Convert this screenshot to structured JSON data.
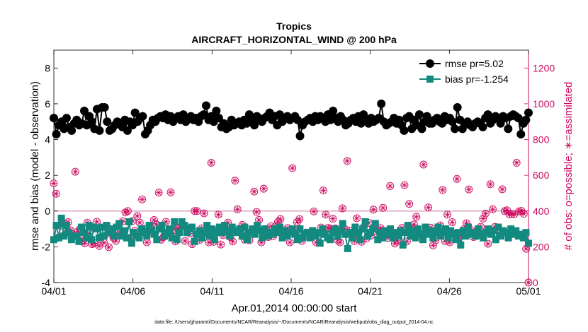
{
  "chart_data": {
    "type": "line",
    "title": "Tropics",
    "subtitle": "AIRCRAFT_HORIZONTAL_WIND @ 200 hPa",
    "xlabel": "Apr.01,2014 00:00:00 start",
    "ylabel": "rmse and bias (model - observation)",
    "y2label": "# of obs: o=possible; ∗=assimilated",
    "footnote": "data file: /Users/gharamti/Documents/NCAR/Reanalysis/~/Documents/NCAR/Reanalysis/webpub/obs_diag_output_2014-04.nc",
    "xlim": [
      0,
      30
    ],
    "ylim": [
      -4,
      9
    ],
    "y2lim": [
      0,
      1300
    ],
    "x_ticks": [
      0,
      5,
      10,
      15,
      20,
      25,
      30
    ],
    "x_tick_labels": [
      "04/01",
      "04/06",
      "04/11",
      "04/16",
      "04/21",
      "04/26",
      "05/01"
    ],
    "y_ticks": [
      -4,
      -2,
      0,
      2,
      4,
      6,
      8
    ],
    "y2_ticks": [
      0,
      200,
      400,
      600,
      800,
      1000,
      1200
    ],
    "zero_line": 0,
    "legend_position": "top-right",
    "colors": {
      "rmse": "#000000",
      "bias": "#138a80",
      "obs": "#cc0a5f",
      "zero": "#d8a0bf"
    },
    "series": [
      {
        "name": "rmse pr=5.02",
        "marker": "circle",
        "values": [
          5.2,
          4.3,
          4.8,
          5.0,
          4.6,
          5.2,
          4.7,
          4.5,
          4.9,
          5.1,
          4.8,
          4.9,
          5.6,
          4.8,
          5.3,
          5.0,
          4.6,
          5.7,
          4.5,
          5.8,
          5.8,
          5.0,
          4.5,
          4.6,
          4.8,
          5.0,
          4.9,
          4.7,
          5.1,
          4.5,
          5.0,
          4.8,
          5.5,
          5.0,
          5.2,
          5.3,
          4.3,
          4.5,
          4.8,
          5.1,
          5.0,
          5.2,
          5.3,
          5.2,
          5.4,
          5.1,
          5.3,
          5.0,
          5.2,
          5.3,
          5.1,
          5.4,
          5.0,
          5.2,
          5.3,
          5.1,
          5.2,
          5.0,
          5.3,
          5.4,
          5.9,
          5.1,
          5.3,
          5.0,
          5.6,
          5.2,
          4.7,
          4.9,
          4.6,
          4.7,
          5.1,
          4.8,
          4.9,
          5.0,
          4.8,
          5.1,
          4.9,
          5.4,
          5.1,
          4.8,
          5.3,
          5.1,
          5.0,
          5.2,
          5.3,
          5.5,
          5.1,
          5.3,
          4.8,
          5.4,
          5.0,
          5.2,
          5.3,
          5.1,
          5.2,
          5.3,
          5.1,
          4.2,
          4.8,
          5.0,
          5.1,
          5.2,
          5.0,
          5.3,
          5.1,
          5.3,
          5.2,
          5.0,
          5.4,
          5.1,
          5.6,
          5.2,
          5.0,
          5.3,
          5.1,
          4.8,
          4.9,
          5.1,
          5.2,
          5.0,
          5.3,
          4.9,
          5.4,
          5.1,
          4.9,
          5.2,
          5.0,
          5.1,
          5.2,
          6.0,
          5.0,
          4.8,
          4.9,
          5.0,
          5.2,
          4.9,
          5.1,
          4.8,
          4.5,
          5.2,
          5.3,
          4.6,
          5.1,
          4.8,
          5.4,
          4.6,
          5.0,
          5.3,
          4.9,
          4.9,
          5.1,
          5.2,
          5.0,
          4.9,
          5.3,
          5.1,
          5.2,
          5.0,
          4.6,
          5.8,
          5.1,
          4.6,
          4.9,
          5.0,
          4.8,
          4.7,
          4.9,
          5.0,
          4.9,
          4.7,
          5.2,
          5.4,
          4.9,
          5.1,
          5.3,
          5.2,
          4.9,
          5.3,
          5.2,
          4.6,
          5.3,
          5.4,
          5.3,
          5.2,
          4.3,
          4.9,
          5.1,
          5.5
        ]
      },
      {
        "name": "bias pr=-1.254",
        "marker": "square",
        "values": [
          -1.6,
          -0.8,
          -1.5,
          -0.4,
          -1.4,
          -0.8,
          -1.2,
          -1.6,
          -1.4,
          -1.4,
          -1.7,
          -0.9,
          -1.2,
          -1.5,
          -0.8,
          -1.6,
          -0.9,
          -1.0,
          -1.5,
          -0.9,
          -1.4,
          -0.8,
          -1.2,
          -1.0,
          -1.4,
          -0.9,
          -0.7,
          -1.4,
          -1.1,
          -1.5,
          -0.6,
          -1.8,
          -1.2,
          -1.4,
          -1.5,
          -1.0,
          -1.2,
          -1.4,
          -0.8,
          -1.1,
          -1.3,
          -1.6,
          -1.0,
          -0.8,
          -1.4,
          -1.2,
          -1.0,
          -1.5,
          -0.6,
          -1.6,
          -1.2,
          -0.6,
          -0.8,
          -1.2,
          -1.0,
          -0.9,
          -1.7,
          -1.3,
          -1.1,
          -1.5,
          -1.2,
          -0.8,
          -1.4,
          -1.0,
          -1.6,
          -1.2,
          -0.9,
          -1.2,
          -0.8,
          -1.1,
          -1.4,
          -0.9,
          -1.1,
          -1.2,
          -1.0,
          -1.4,
          -0.9,
          -1.6,
          -1.2,
          -1.0,
          -1.3,
          -0.8,
          -1.1,
          -1.5,
          -1.0,
          -1.4,
          -1.2,
          -1.3,
          -1.0,
          -1.2,
          -0.9,
          -1.5,
          -1.1,
          -1.4,
          -1.2,
          -1.0,
          -1.3,
          -1.6,
          -1.0,
          -1.5,
          -1.3,
          -1.2,
          -1.5,
          -1.1,
          -1.4,
          -1.2,
          -1.8,
          -1.0,
          -1.3,
          -1.5,
          -1.6,
          -1.2,
          -1.0,
          -1.4,
          -1.1,
          -0.7,
          -1.3,
          -2.1,
          -1.2,
          -1.5,
          -0.9,
          -1.2,
          -1.6,
          -1.0,
          -0.6,
          -1.4,
          -1.2,
          -1.0,
          -0.7,
          -1.6,
          -1.2,
          -1.5,
          -1.1,
          -1.3,
          -1.0,
          -1.5,
          -1.2,
          -1.4,
          -1.1,
          -1.9,
          -1.2,
          -0.8,
          -1.4,
          -1.1,
          -1.5,
          -1.0,
          -1.3,
          -1.6,
          -0.9,
          -1.3,
          -1.1,
          -1.5,
          -1.2,
          -0.9,
          -1.4,
          -1.2,
          -1.0,
          -1.5,
          -1.1,
          -1.3,
          -1.6,
          -1.2,
          -1.9,
          -1.1,
          -1.4,
          -0.9,
          -1.3,
          -1.2,
          -1.4,
          -1.0,
          -1.3,
          -1.5,
          -1.2,
          -1.0,
          -1.3,
          -1.1,
          -1.6,
          -0.9,
          -1.4,
          -1.1,
          -1.2,
          -1.5,
          -1.0,
          -1.3,
          -1.1,
          -1.4,
          -1.3,
          -1.5,
          -1.2,
          -1.8
        ]
      },
      {
        "name": "# of obs possible",
        "axis": "right",
        "marker": "open-circle",
        "values": [
          555,
          497,
          252,
          317,
          332,
          275,
          338,
          292,
          270,
          620,
          285,
          300,
          235,
          220,
          335,
          275,
          215,
          220,
          340,
          205,
          255,
          223,
          310,
          198,
          272,
          250,
          233,
          265,
          286,
          343,
          392,
          400,
          250,
          345,
          290,
          372,
          335,
          465,
          300,
          225,
          282,
          300,
          350,
          325,
          503,
          240,
          255,
          340,
          273,
          505,
          275,
          230,
          303,
          310,
          320,
          233,
          290,
          275,
          215,
          400,
          400,
          237,
          303,
          387,
          277,
          225,
          670,
          228,
          290,
          380,
          213,
          265,
          290,
          335,
          255,
          230,
          570,
          410,
          283,
          322,
          240,
          280,
          237,
          273,
          509,
          395,
          350,
          225,
          525,
          300,
          255,
          315,
          260,
          315,
          340,
          355,
          280,
          262,
          305,
          225,
          640,
          290,
          338,
          355,
          233,
          270,
          280,
          254,
          262,
          398,
          225,
          275,
          308,
          515,
          380,
          306,
          302,
          357,
          303,
          238,
          225,
          415,
          300,
          680,
          290,
          267,
          232,
          360,
          242,
          228,
          312,
          247,
          334,
          262,
          408,
          290,
          293,
          305,
          418,
          278,
          250,
          540,
          276,
          218,
          234,
          285,
          306,
          545,
          230,
          440,
          306,
          325,
          368,
          262,
          270,
          660,
          290,
          420,
          307,
          208,
          236,
          280,
          320,
          518,
          232,
          380,
          225,
          338,
          272,
          580,
          254,
          262,
          298,
          332,
          521,
          293,
          255,
          280,
          266,
          312,
          358,
          386,
          217,
          550,
          410,
          312,
          300,
          263,
          522,
          400,
          404,
          382,
          384,
          382,
          670,
          398,
          401,
          385,
          189,
          0
        ],
        "markers_only": true
      },
      {
        "name": "# of obs assimilated",
        "axis": "right",
        "marker": "star",
        "values": [
          555,
          497,
          252,
          317,
          332,
          275,
          338,
          292,
          270,
          620,
          285,
          300,
          235,
          220,
          335,
          275,
          215,
          220,
          340,
          205,
          255,
          223,
          310,
          198,
          272,
          250,
          233,
          265,
          286,
          343,
          392,
          400,
          250,
          345,
          290,
          372,
          335,
          465,
          300,
          225,
          282,
          300,
          350,
          325,
          503,
          240,
          255,
          340,
          273,
          505,
          275,
          230,
          303,
          310,
          320,
          233,
          290,
          275,
          215,
          400,
          400,
          237,
          303,
          387,
          277,
          225,
          670,
          228,
          290,
          380,
          213,
          265,
          290,
          335,
          255,
          230,
          570,
          410,
          283,
          322,
          240,
          280,
          237,
          273,
          509,
          395,
          350,
          225,
          525,
          300,
          255,
          315,
          260,
          315,
          340,
          355,
          280,
          262,
          305,
          225,
          640,
          290,
          338,
          355,
          233,
          270,
          280,
          254,
          262,
          398,
          225,
          275,
          308,
          515,
          380,
          306,
          302,
          357,
          303,
          238,
          225,
          415,
          300,
          680,
          290,
          267,
          232,
          360,
          242,
          228,
          312,
          247,
          334,
          262,
          408,
          290,
          293,
          305,
          418,
          278,
          250,
          540,
          276,
          218,
          234,
          285,
          306,
          545,
          230,
          440,
          306,
          325,
          368,
          262,
          270,
          660,
          290,
          420,
          307,
          208,
          236,
          280,
          320,
          518,
          232,
          380,
          225,
          338,
          272,
          580,
          254,
          262,
          298,
          332,
          521,
          293,
          255,
          280,
          266,
          312,
          358,
          386,
          217,
          550,
          410,
          312,
          300,
          263,
          522,
          400,
          404,
          382,
          384,
          382,
          670,
          398,
          401,
          385,
          189,
          0
        ],
        "markers_only": true
      }
    ],
    "legend": [
      "rmse pr=5.02",
      "bias pr=-1.254"
    ]
  }
}
